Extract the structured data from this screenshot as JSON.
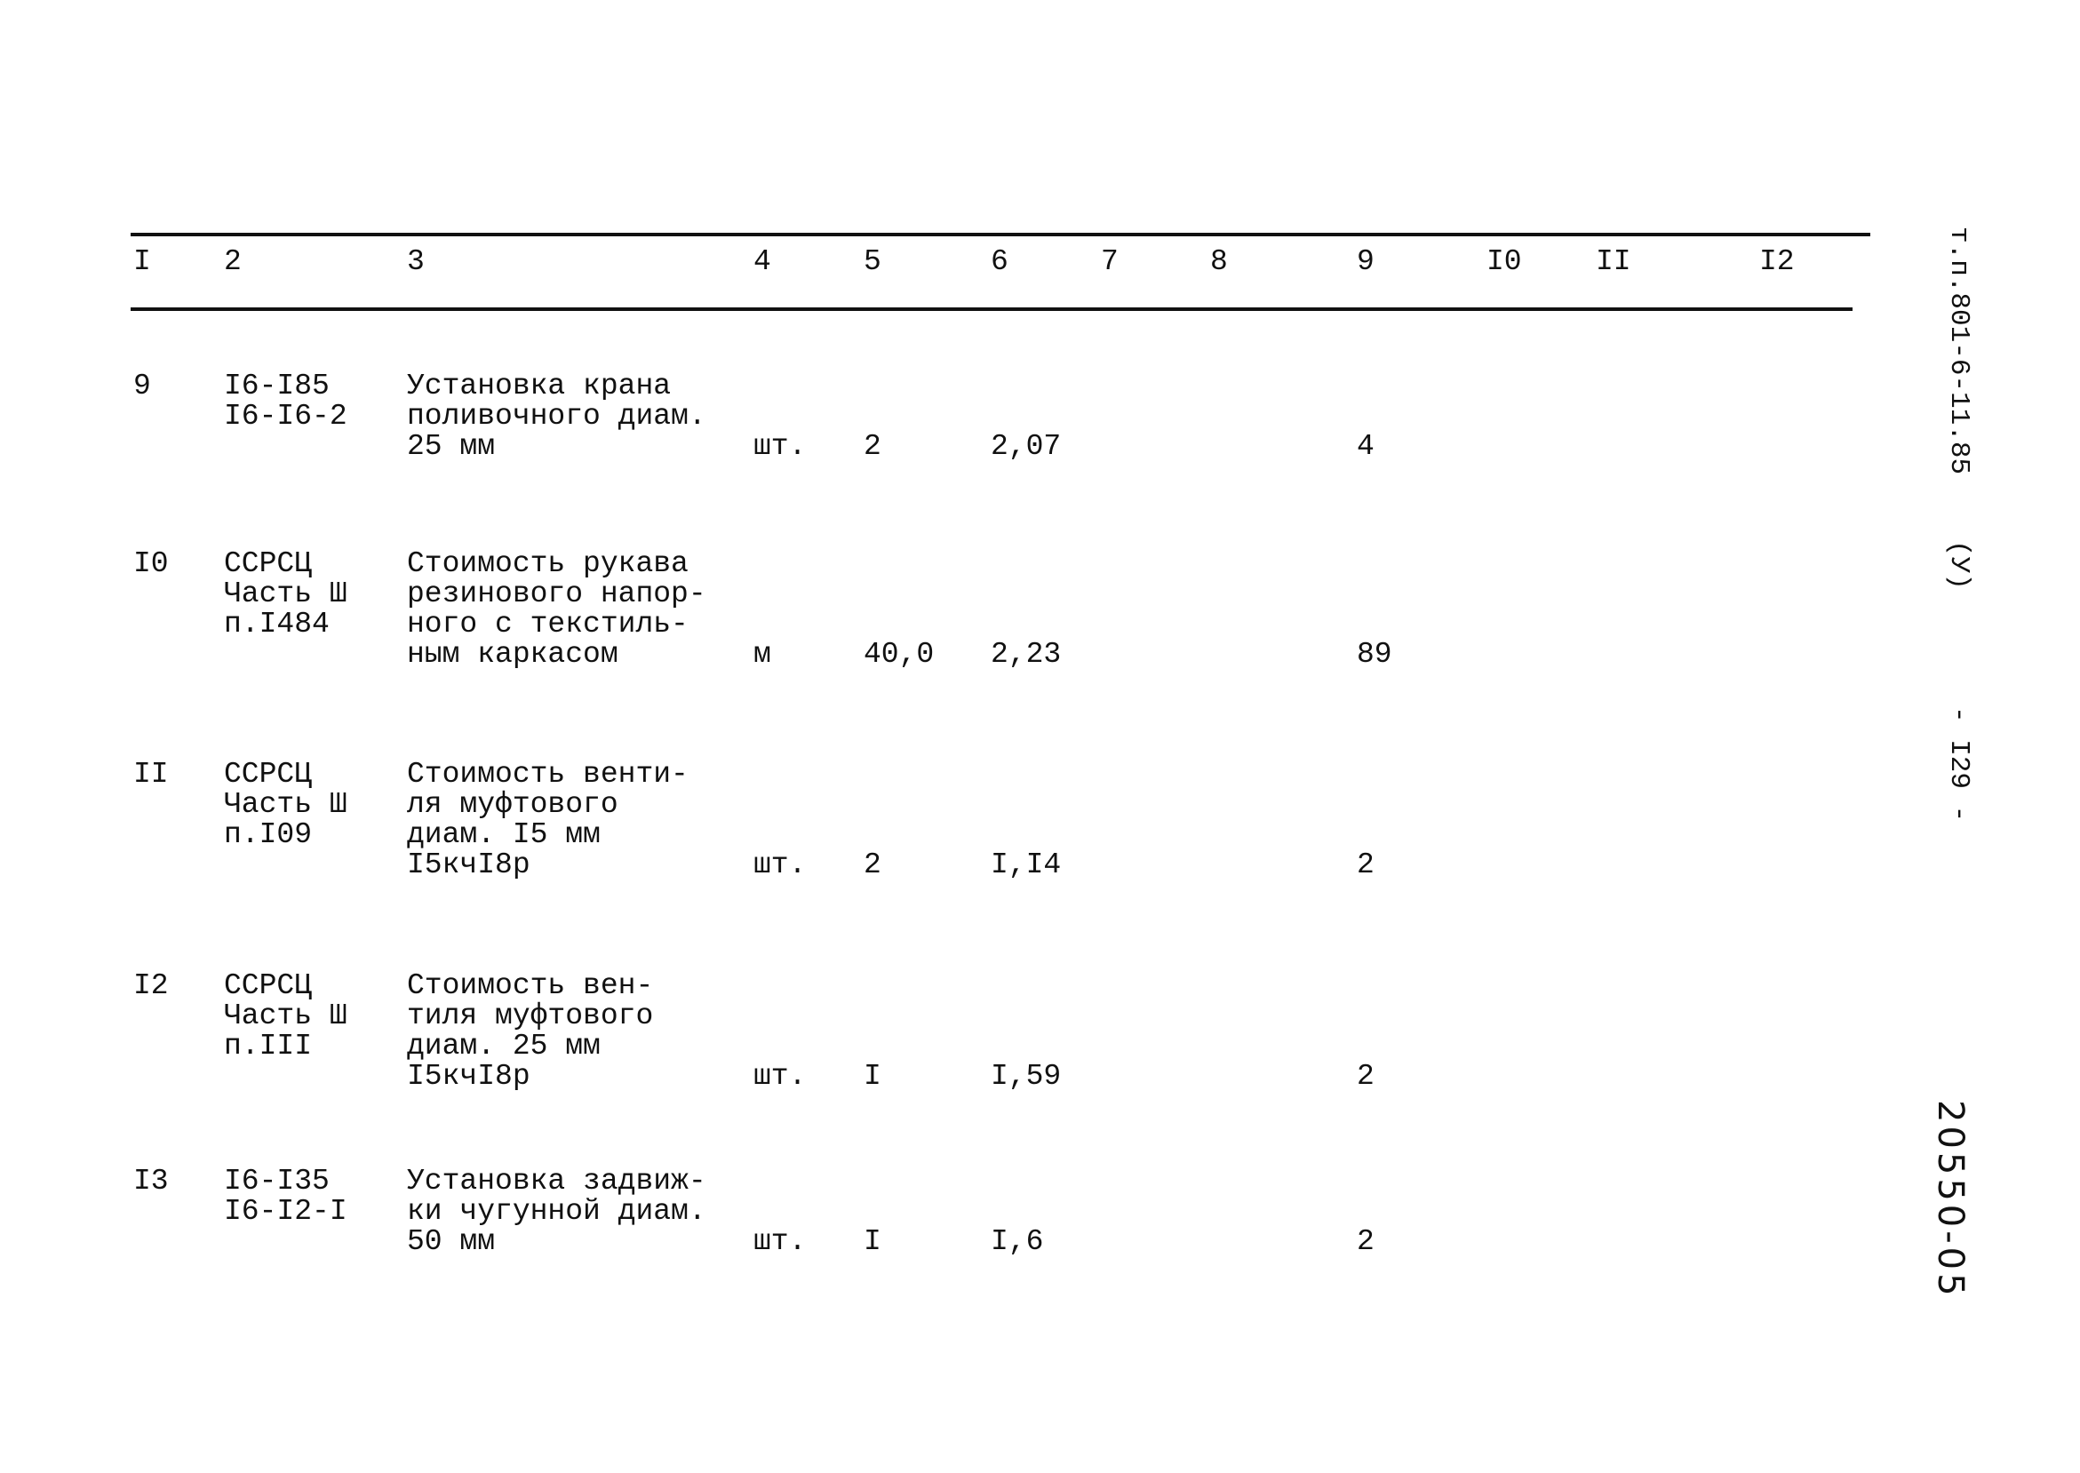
{
  "header": [
    "I",
    "2",
    "3",
    "4",
    "5",
    "6",
    "7",
    "8",
    "9",
    "I0",
    "II",
    "I2"
  ],
  "rows": [
    {
      "num": "9",
      "ref": [
        "I6-I85",
        "I6-I6-2"
      ],
      "desc": [
        "Установка крана",
        "поливочного диам.",
        "25 мм"
      ],
      "unit": "шт.",
      "qty": "2",
      "price": "2,07",
      "total": "4"
    },
    {
      "num": "I0",
      "ref": [
        "ССРСЦ",
        "Часть Ш",
        "п.I484"
      ],
      "desc": [
        "Стоимость рукава",
        "резинового напор-",
        "ного с текстиль-",
        "ным каркасом"
      ],
      "unit": "м",
      "qty": "40,0",
      "price": "2,23",
      "total": "89"
    },
    {
      "num": "II",
      "ref": [
        "ССРСЦ",
        "Часть Ш",
        "п.I09"
      ],
      "desc": [
        "Стоимость венти-",
        "ля муфтового",
        "диам. I5 мм",
        "I5кчI8р"
      ],
      "unit": "шт.",
      "qty": "2",
      "price": "I,I4",
      "total": "2"
    },
    {
      "num": "I2",
      "ref": [
        "ССРСЦ",
        "Часть Ш",
        "п.III"
      ],
      "desc": [
        "Стоимость вен-",
        "тиля муфтового",
        "диам. 25 мм",
        "I5кчI8р"
      ],
      "unit": "шт.",
      "qty": "I",
      "price": "I,59",
      "total": "2"
    },
    {
      "num": "I3",
      "ref": [
        "I6-I35",
        "I6-I2-I"
      ],
      "desc": [
        "Установка задвиж-",
        "ки чугунной диам.",
        "50 мм"
      ],
      "unit": "шт.",
      "qty": "I",
      "price": "I,6",
      "total": "2"
    }
  ],
  "margin": {
    "doc_code": "т.п.801-6-11.85",
    "volume": "(У)",
    "page": "- I29 -",
    "inventory": "20550-05"
  }
}
